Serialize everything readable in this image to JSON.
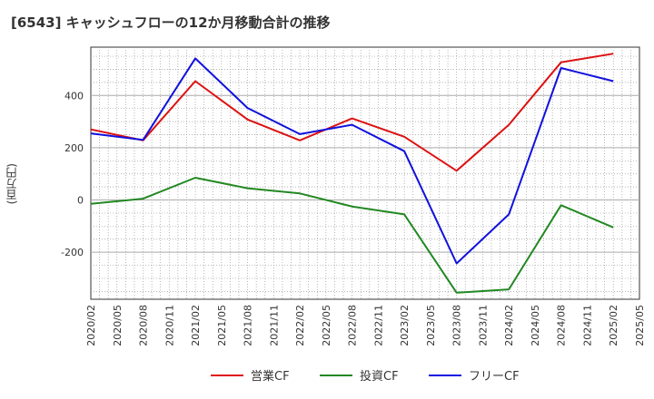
{
  "chart_data": {
    "type": "line",
    "title": "[6543]  キャッシュフローの12か月移動合計の推移",
    "ylabel": "(百万円)",
    "xlabel": "",
    "ylim": [
      -380,
      585
    ],
    "yticks": [
      -200,
      0,
      200,
      400
    ],
    "ytick_labels": [
      "-200",
      "0",
      "200",
      "400"
    ],
    "x_tick_labels": [
      "2020/02",
      "2020/05",
      "2020/08",
      "2020/11",
      "2021/02",
      "2021/05",
      "2021/08",
      "2021/11",
      "2022/02",
      "2022/05",
      "2022/08",
      "2022/11",
      "2023/02",
      "2023/05",
      "2023/08",
      "2023/11",
      "2024/02",
      "2024/05",
      "2024/08",
      "2024/11",
      "2025/02",
      "2025/05"
    ],
    "x_points": [
      "2020/02",
      "2020/08",
      "2021/02",
      "2021/08",
      "2022/02",
      "2022/08",
      "2023/02",
      "2023/08",
      "2024/02",
      "2024/08",
      "2025/02"
    ],
    "grid": true,
    "legend_position": "bottom",
    "series": [
      {
        "name": "営業CF",
        "color": "#dd1111",
        "values": [
          270,
          228,
          455,
          308,
          228,
          312,
          242,
          112,
          288,
          527,
          560
        ]
      },
      {
        "name": "投資CF",
        "color": "#228822",
        "values": [
          -15,
          5,
          85,
          45,
          25,
          -25,
          -55,
          -355,
          -342,
          -20,
          -105
        ]
      },
      {
        "name": "フリーCF",
        "color": "#1111dd",
        "values": [
          255,
          230,
          542,
          352,
          252,
          288,
          187,
          -243,
          -55,
          505,
          455
        ]
      }
    ]
  }
}
